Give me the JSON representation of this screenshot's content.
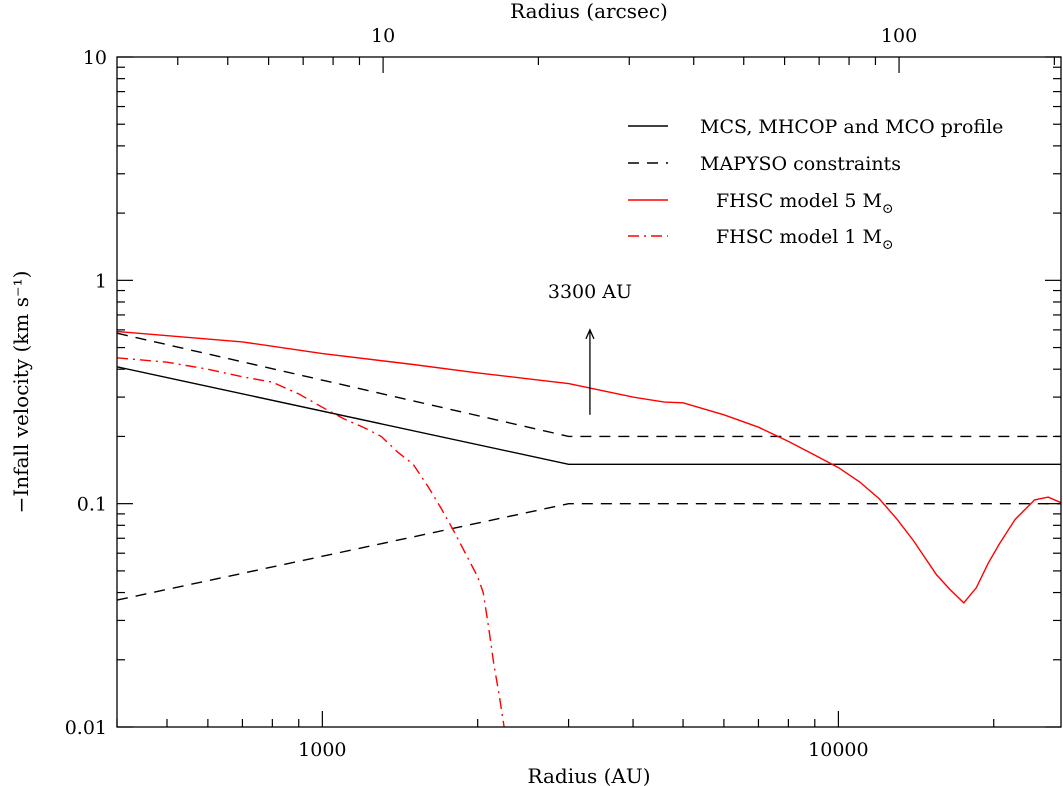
{
  "chart_data": {
    "type": "line",
    "xlabel": "Radius (AU)",
    "x2label": "Radius (arcsec)",
    "ylabel": "−Infall velocity (km s⁻¹)",
    "xscale": "log",
    "yscale": "log",
    "xlim": [
      400,
      27000
    ],
    "ylim": [
      0.01,
      10
    ],
    "x2lim": [
      3.05,
      206
    ],
    "x_ticklabels": [
      {
        "v": 1000,
        "t": "1000"
      },
      {
        "v": 10000,
        "t": "10000"
      }
    ],
    "x2_ticklabels": [
      {
        "v": 10,
        "t": "10"
      },
      {
        "v": 100,
        "t": "100"
      }
    ],
    "y_ticklabels": [
      {
        "v": 0.01,
        "t": "0.01"
      },
      {
        "v": 0.1,
        "t": "0.1"
      },
      {
        "v": 1,
        "t": "1"
      },
      {
        "v": 10,
        "t": "10"
      }
    ],
    "legend_position": "top-right",
    "annotation": {
      "text": "3300 AU",
      "x": 3300,
      "arrow_from": 0.25,
      "arrow_to": 0.6
    },
    "series": [
      {
        "name": "MCS, MHCOP and MCO profile",
        "color": "#000000",
        "dash": "solid",
        "points": [
          [
            400,
            0.41
          ],
          [
            3000,
            0.15
          ],
          [
            27000,
            0.15
          ]
        ]
      },
      {
        "name": "MAPYSO constraints",
        "color": "#000000",
        "dash": "dashed",
        "points": [
          [
            400,
            0.58
          ],
          [
            3000,
            0.2
          ],
          [
            27000,
            0.2
          ]
        ]
      },
      {
        "name": "",
        "color": "#000000",
        "dash": "dashed",
        "points": [
          [
            400,
            0.037
          ],
          [
            3000,
            0.1
          ],
          [
            27000,
            0.1
          ]
        ]
      },
      {
        "name": "FHSC model 5 M",
        "name_sub": "⊙",
        "color": "#ff0000",
        "dash": "solid",
        "points": [
          [
            400,
            0.59
          ],
          [
            700,
            0.53
          ],
          [
            1000,
            0.47
          ],
          [
            1500,
            0.42
          ],
          [
            2000,
            0.385
          ],
          [
            3000,
            0.345
          ],
          [
            4000,
            0.3
          ],
          [
            4600,
            0.285
          ],
          [
            5000,
            0.283
          ],
          [
            6000,
            0.25
          ],
          [
            7000,
            0.22
          ],
          [
            8000,
            0.19
          ],
          [
            9000,
            0.165
          ],
          [
            10000,
            0.145
          ],
          [
            11000,
            0.125
          ],
          [
            12000,
            0.105
          ],
          [
            13000,
            0.085
          ],
          [
            14000,
            0.068
          ],
          [
            15500,
            0.048
          ],
          [
            16500,
            0.041
          ],
          [
            17500,
            0.036
          ],
          [
            18500,
            0.042
          ],
          [
            19500,
            0.054
          ],
          [
            20500,
            0.066
          ],
          [
            22000,
            0.085
          ],
          [
            24000,
            0.104
          ],
          [
            25500,
            0.107
          ],
          [
            27000,
            0.101
          ]
        ]
      },
      {
        "name": "FHSC model 1 M",
        "name_sub": "⊙",
        "color": "#ff0000",
        "dash": "dashdot",
        "points": [
          [
            400,
            0.45
          ],
          [
            500,
            0.43
          ],
          [
            600,
            0.4
          ],
          [
            700,
            0.37
          ],
          [
            800,
            0.35
          ],
          [
            900,
            0.31
          ],
          [
            1000,
            0.27
          ],
          [
            1100,
            0.24
          ],
          [
            1200,
            0.22
          ],
          [
            1300,
            0.2
          ],
          [
            1400,
            0.17
          ],
          [
            1500,
            0.15
          ],
          [
            1600,
            0.12
          ],
          [
            1700,
            0.095
          ],
          [
            1800,
            0.075
          ],
          [
            1900,
            0.059
          ],
          [
            2000,
            0.047
          ],
          [
            2050,
            0.04
          ],
          [
            2100,
            0.028
          ],
          [
            2150,
            0.019
          ],
          [
            2200,
            0.014
          ],
          [
            2250,
            0.01
          ]
        ]
      }
    ]
  }
}
